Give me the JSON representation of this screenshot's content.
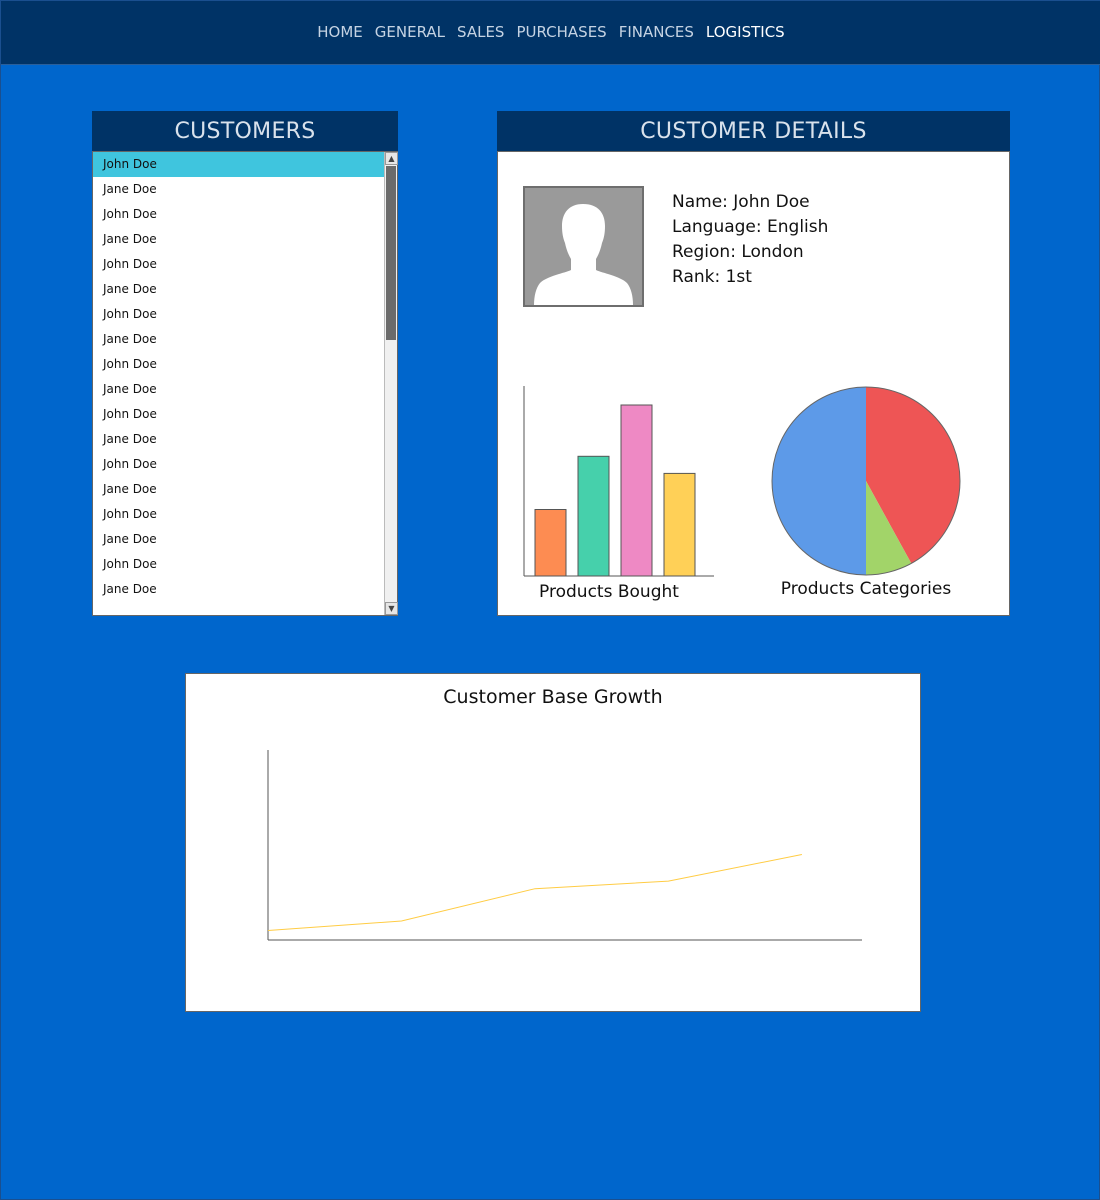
{
  "nav": {
    "items": [
      {
        "label": "HOME"
      },
      {
        "label": "GENERAL"
      },
      {
        "label": "SALES"
      },
      {
        "label": "PURCHASES"
      },
      {
        "label": "FINANCES"
      },
      {
        "label": "LOGISTICS"
      }
    ],
    "active_index": 5
  },
  "customers": {
    "title": "CUSTOMERS",
    "selected_index": 0,
    "items": [
      "John Doe",
      "Jane Doe",
      "John Doe",
      "Jane Doe",
      "John Doe",
      "Jane Doe",
      "John Doe",
      "Jane Doe",
      "John Doe",
      "Jane Doe",
      "John Doe",
      "Jane Doe",
      "John Doe",
      "Jane Doe",
      "John Doe",
      "Jane Doe",
      "John Doe",
      "Jane Doe"
    ]
  },
  "details": {
    "title": "CUSTOMER DETAILS",
    "name": "Name: John Doe",
    "language": "Language: English",
    "region": "Region: London",
    "rank": "Rank: 1st"
  },
  "chart_data": [
    {
      "type": "bar",
      "xlabel": "Products Bought",
      "categories": [
        "",
        "",
        "",
        ""
      ],
      "values": [
        35,
        63,
        90,
        54
      ],
      "ylim": [
        0,
        100
      ],
      "colors": [
        "#fd8c52",
        "#46d0ab",
        "#ee89c4",
        "#ffd057"
      ]
    },
    {
      "type": "pie",
      "title": "Products Categories",
      "values": [
        42,
        8,
        50
      ],
      "colors": [
        "#ee5555",
        "#a2d469",
        "#5d9ae8"
      ]
    },
    {
      "type": "line",
      "title": "Customer Base Growth",
      "x": [
        0,
        1,
        2,
        3,
        4
      ],
      "values": [
        5,
        10,
        27,
        31,
        45
      ],
      "xlim": [
        0,
        4.45
      ],
      "ylim": [
        0,
        100
      ],
      "color": "#ffcc44"
    }
  ]
}
